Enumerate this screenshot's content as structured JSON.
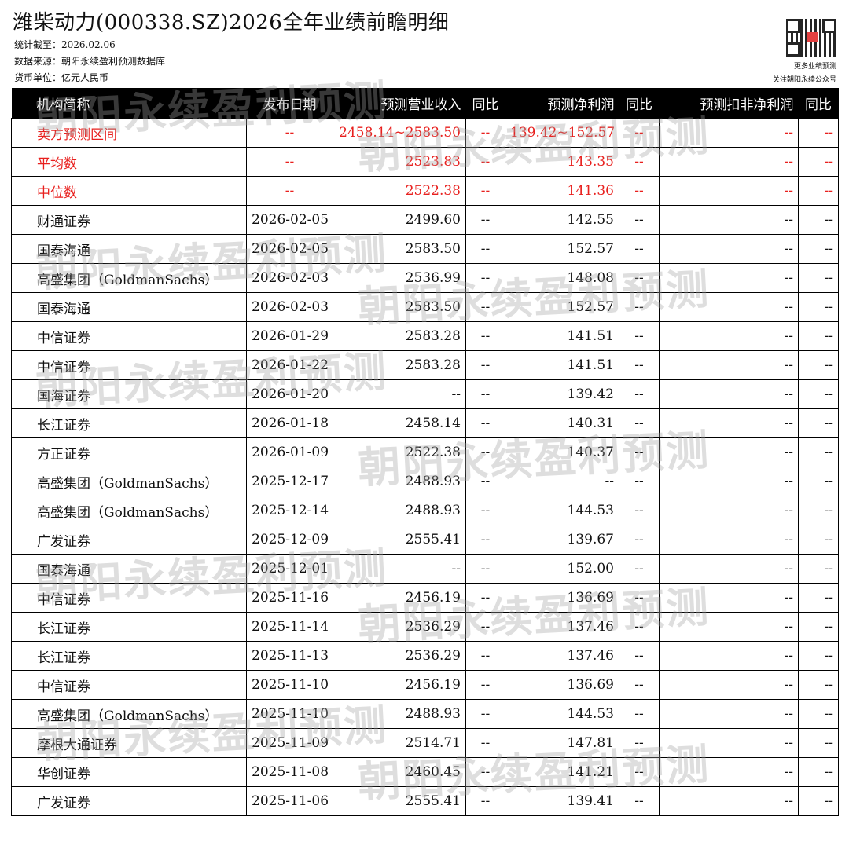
{
  "title": "潍柴动力(000338.SZ)2026全年业绩前瞻明细",
  "meta": {
    "date": "统计截至：2026.02.06",
    "source": "数据来源：朝阳永续盈利预测数据库",
    "currency": "货币单位：亿元人民币"
  },
  "qr": {
    "line1": "更多业绩预测",
    "line2": "关注朝阳永续公众号"
  },
  "watermark": "朝阳永续盈利预测",
  "colors": {
    "accent_red": "#e8201e",
    "header_bg": "#000000"
  },
  "columns": [
    "机构简称",
    "发布日期",
    "预测营业收入",
    "同比",
    "预测净利润",
    "同比",
    "预测扣非净利润",
    "同比"
  ],
  "summary_rows": [
    [
      "卖方预测区间",
      "--",
      "2458.14~2583.50",
      "--",
      "139.42~152.57",
      "--",
      "--",
      "--"
    ],
    [
      "平均数",
      "--",
      "2523.83",
      "--",
      "143.35",
      "--",
      "--",
      "--"
    ],
    [
      "中位数",
      "--",
      "2522.38",
      "--",
      "141.36",
      "--",
      "--",
      "--"
    ]
  ],
  "rows": [
    [
      "财通证券",
      "2026-02-05",
      "2499.60",
      "--",
      "142.55",
      "--",
      "--",
      "--"
    ],
    [
      "国泰海通",
      "2026-02-05",
      "2583.50",
      "--",
      "152.57",
      "--",
      "--",
      "--"
    ],
    [
      "高盛集团（GoldmanSachs）",
      "2026-02-03",
      "2536.99",
      "--",
      "148.08",
      "--",
      "--",
      "--"
    ],
    [
      "国泰海通",
      "2026-02-03",
      "2583.50",
      "--",
      "152.57",
      "--",
      "--",
      "--"
    ],
    [
      "中信证券",
      "2026-01-29",
      "2583.28",
      "--",
      "141.51",
      "--",
      "--",
      "--"
    ],
    [
      "中信证券",
      "2026-01-22",
      "2583.28",
      "--",
      "141.51",
      "--",
      "--",
      "--"
    ],
    [
      "国海证券",
      "2026-01-20",
      "--",
      "--",
      "139.42",
      "--",
      "--",
      "--"
    ],
    [
      "长江证券",
      "2026-01-18",
      "2458.14",
      "--",
      "140.31",
      "--",
      "--",
      "--"
    ],
    [
      "方正证券",
      "2026-01-09",
      "2522.38",
      "--",
      "140.37",
      "--",
      "--",
      "--"
    ],
    [
      "高盛集团（GoldmanSachs）",
      "2025-12-17",
      "2488.93",
      "--",
      "--",
      "--",
      "--",
      "--"
    ],
    [
      "高盛集团（GoldmanSachs）",
      "2025-12-14",
      "2488.93",
      "--",
      "144.53",
      "--",
      "--",
      "--"
    ],
    [
      "广发证券",
      "2025-12-09",
      "2555.41",
      "--",
      "139.67",
      "--",
      "--",
      "--"
    ],
    [
      "国泰海通",
      "2025-12-01",
      "--",
      "--",
      "152.00",
      "--",
      "--",
      "--"
    ],
    [
      "中信证券",
      "2025-11-16",
      "2456.19",
      "--",
      "136.69",
      "--",
      "--",
      "--"
    ],
    [
      "长江证券",
      "2025-11-14",
      "2536.29",
      "--",
      "137.46",
      "--",
      "--",
      "--"
    ],
    [
      "长江证券",
      "2025-11-13",
      "2536.29",
      "--",
      "137.46",
      "--",
      "--",
      "--"
    ],
    [
      "中信证券",
      "2025-11-10",
      "2456.19",
      "--",
      "136.69",
      "--",
      "--",
      "--"
    ],
    [
      "高盛集团（GoldmanSachs）",
      "2025-11-10",
      "2488.93",
      "--",
      "144.53",
      "--",
      "--",
      "--"
    ],
    [
      "摩根大通证券",
      "2025-11-09",
      "2514.71",
      "--",
      "147.81",
      "--",
      "--",
      "--"
    ],
    [
      "华创证券",
      "2025-11-08",
      "2460.45",
      "--",
      "141.21",
      "--",
      "--",
      "--"
    ],
    [
      "广发证券",
      "2025-11-06",
      "2555.41",
      "--",
      "139.41",
      "--",
      "--",
      "--"
    ]
  ]
}
